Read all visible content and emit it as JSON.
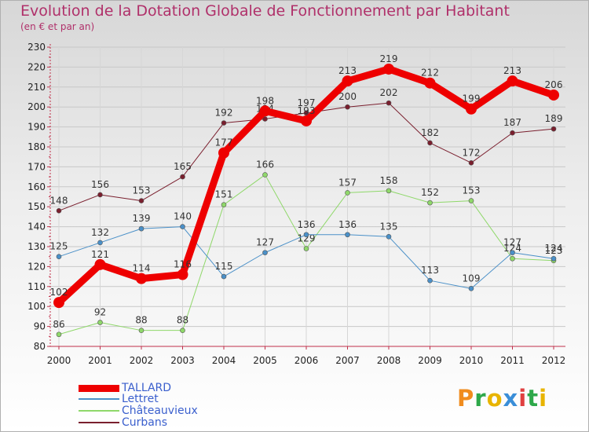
{
  "title": "Evolution de la Dotation Globale de Fonctionnement par Habitant",
  "subtitle": "(en € et par an)",
  "logo_text": "Proxiti",
  "colors": {
    "title": "#b0306a",
    "axis": "#c0304a",
    "legend_text": "#3a5fcd",
    "logo": [
      "#f08c1e",
      "#2ea84a",
      "#e8b400",
      "#3a8ed8",
      "#e04040",
      "#2ea84a",
      "#e8b400"
    ]
  },
  "chart_data": {
    "type": "line",
    "categories": [
      "2000",
      "2001",
      "2002",
      "2003",
      "2004",
      "2005",
      "2006",
      "2007",
      "2008",
      "2009",
      "2010",
      "2011",
      "2012"
    ],
    "ylim": [
      80,
      230
    ],
    "yticks": [
      80,
      90,
      100,
      110,
      120,
      130,
      140,
      150,
      160,
      170,
      180,
      190,
      200,
      210,
      220,
      230
    ],
    "grid": true,
    "legend_position": "bottom-left",
    "series": [
      {
        "name": "Curbans",
        "color": "#7a1f2e",
        "width": 1,
        "values": [
          148,
          156,
          153,
          165,
          192,
          194,
          197,
          200,
          202,
          182,
          172,
          187,
          189
        ],
        "labels": [
          "148",
          "156",
          "153",
          "165",
          "192",
          "194",
          "197",
          "200",
          "202",
          "182",
          "172",
          "187",
          "189"
        ]
      },
      {
        "name": "Châteauvieux",
        "color": "#8fd86a",
        "width": 1,
        "values": [
          86,
          92,
          88,
          88,
          151,
          166,
          129,
          157,
          158,
          152,
          153,
          124,
          123
        ],
        "labels": [
          "86",
          "92",
          "88",
          "88",
          "151",
          "166",
          "129",
          "157",
          "158",
          "152",
          "153",
          "124",
          "123"
        ]
      },
      {
        "name": "Lettret",
        "color": "#4a90c8",
        "width": 1,
        "values": [
          125,
          132,
          139,
          140,
          115,
          127,
          136,
          136,
          135,
          113,
          109,
          127,
          124
        ],
        "labels": [
          "125",
          "132",
          "139",
          "140",
          "115",
          "127",
          "136",
          "136",
          "135",
          "113",
          "109",
          "127",
          "124"
        ]
      },
      {
        "name": "TALLARD",
        "color": "#ee0000",
        "width": 9,
        "values": [
          102,
          121,
          114,
          116,
          177,
          198,
          193,
          213,
          219,
          212,
          199,
          213,
          206
        ],
        "labels": [
          "102",
          "121",
          "114",
          "116",
          "177",
          "198",
          "193",
          "213",
          "219",
          "212",
          "199",
          "213",
          "206"
        ]
      }
    ],
    "legend": [
      "TALLARD",
      "Lettret",
      "Châteauvieux",
      "Curbans"
    ]
  }
}
